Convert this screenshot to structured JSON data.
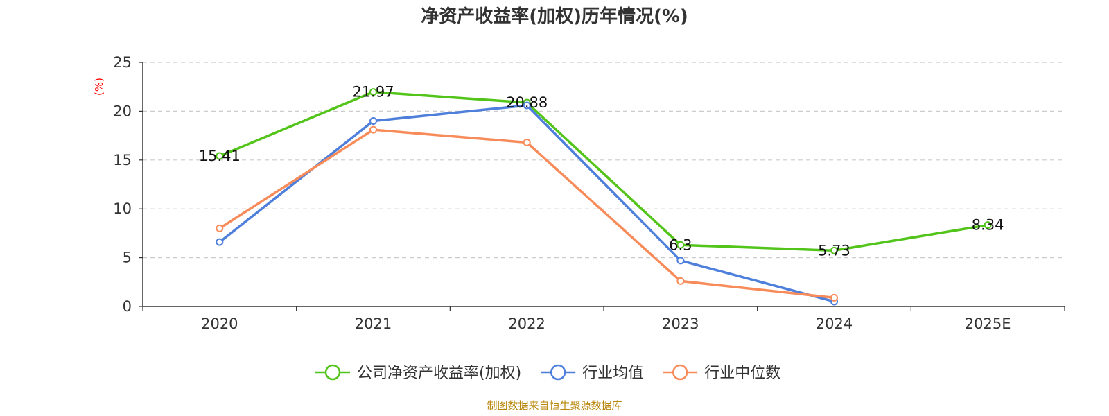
{
  "chart_data": {
    "type": "line",
    "title": "净资产收益率(加权)历年情况(%)",
    "ylabel": "(%)",
    "xlabel": "",
    "categories": [
      "2020",
      "2021",
      "2022",
      "2023",
      "2024",
      "2025E"
    ],
    "ylim": [
      0,
      25
    ],
    "yticks": [
      0,
      5,
      10,
      15,
      20,
      25
    ],
    "grid": true,
    "legend_position": "bottom-center",
    "series": [
      {
        "name": "公司净资产收益率(加权)",
        "color": "#52c41a",
        "values": [
          15.41,
          21.97,
          20.88,
          6.3,
          5.73,
          8.34
        ],
        "labels": [
          "15.41",
          "21.97",
          "20.88",
          "6.3",
          "5.73",
          "8.34"
        ]
      },
      {
        "name": "行业均值",
        "color": "#4e7fdb",
        "values": [
          6.6,
          19.0,
          20.6,
          4.7,
          0.5,
          null
        ]
      },
      {
        "name": "行业中位数",
        "color": "#f88b5a",
        "values": [
          8.0,
          18.1,
          16.8,
          2.6,
          0.9,
          null
        ]
      }
    ]
  },
  "source": "制图数据来自恒生聚源数据库"
}
